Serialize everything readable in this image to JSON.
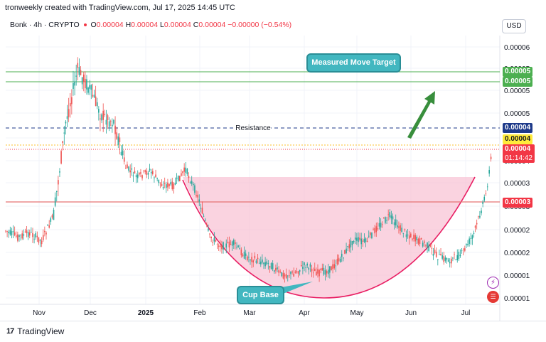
{
  "header": "tronweekly created with TradingView.com, Jul 17, 2025 14:45 UTC",
  "legend": {
    "symbol": "Bonk · 4h · CRYPTO",
    "open_label": "O",
    "open": "0.00004",
    "high_label": "H",
    "high": "0.00004",
    "low_label": "L",
    "low": "0.00004",
    "close_label": "C",
    "close": "0.00004",
    "change": "−0.00000 (−0.54%)"
  },
  "currency_button": "USD",
  "footer_brand": "TradingView",
  "footer_logo": "17",
  "annotations": {
    "measured_move": "Measured Move Target",
    "cup_base": "Cup Base",
    "resistance": "Resistance"
  },
  "price_tags": {
    "target_upper": "0.00005",
    "target_lower": "0.00005",
    "resistance": "0.00004",
    "yellow_line": "0.00004",
    "current_price": "0.00004",
    "countdown": "01:14:42",
    "support": "0.00003"
  },
  "colors": {
    "up": "#26a69a",
    "down": "#ef5350",
    "cup_fill": "#f8bbd0",
    "cup_stroke": "#e91e63",
    "target_green": "#4caf50",
    "resistance_blue": "#1e3a8a",
    "support_red": "#e57373",
    "callout": "#42b7c0",
    "arrow": "#388e3c"
  },
  "icons": [
    "lightning-icon",
    "flag-icon"
  ],
  "chart_data": {
    "type": "candlestick",
    "title": "Bonk · 4h · CRYPTO",
    "xlabel": "",
    "ylabel": "",
    "x_ticks": [
      "Nov",
      "Dec",
      "2025",
      "Feb",
      "Mar",
      "Apr",
      "May",
      "Jun",
      "Jul"
    ],
    "y_ticks": [
      "0.00006",
      "0.00005",
      "0.00005",
      "0.00005",
      "0.00004",
      "0.00004",
      "0.00003",
      "0.00003",
      "0.00002",
      "0.00002",
      "0.00001",
      "0.00001"
    ],
    "ylim": [
      8.5e-06,
      6.08e-05
    ],
    "key_levels": {
      "measured_move_target_upper": 5.32e-05,
      "measured_move_target_lower": 5.13e-05,
      "resistance": 4.18e-05,
      "support": 2.9e-05,
      "current_price": 3.89e-05
    },
    "series": [
      {
        "name": "Bonk",
        "points": [
          [
            "2024-10-06",
            2.28e-05
          ],
          [
            "2024-10-13",
            2.16e-05
          ],
          [
            "2024-10-20",
            2.24e-05
          ],
          [
            "2024-10-27",
            2.08e-05
          ],
          [
            "2024-11-03",
            2.58e-05
          ],
          [
            "2024-11-10",
            4.38e-05
          ],
          [
            "2024-11-17",
            5.41e-05
          ],
          [
            "2024-11-24",
            5.04e-05
          ],
          [
            "2024-12-01",
            4.52e-05
          ],
          [
            "2024-12-08",
            4.4e-05
          ],
          [
            "2024-12-15",
            3.52e-05
          ],
          [
            "2024-12-22",
            3.32e-05
          ],
          [
            "2024-12-29",
            3.45e-05
          ],
          [
            "2025-01-05",
            3.18e-05
          ],
          [
            "2025-01-12",
            3.16e-05
          ],
          [
            "2025-01-19",
            3.48e-05
          ],
          [
            "2025-01-26",
            2.96e-05
          ],
          [
            "2025-02-02",
            2.16e-05
          ],
          [
            "2025-02-09",
            1.98e-05
          ],
          [
            "2025-02-16",
            2.03e-05
          ],
          [
            "2025-02-23",
            1.78e-05
          ],
          [
            "2025-03-02",
            1.7e-05
          ],
          [
            "2025-03-09",
            1.63e-05
          ],
          [
            "2025-03-16",
            1.42e-05
          ],
          [
            "2025-03-23",
            1.45e-05
          ],
          [
            "2025-03-30",
            1.62e-05
          ],
          [
            "2025-04-06",
            1.46e-05
          ],
          [
            "2025-04-13",
            1.52e-05
          ],
          [
            "2025-04-20",
            1.76e-05
          ],
          [
            "2025-04-27",
            2.12e-05
          ],
          [
            "2025-05-04",
            2.06e-05
          ],
          [
            "2025-05-11",
            2.36e-05
          ],
          [
            "2025-05-18",
            2.57e-05
          ],
          [
            "2025-05-25",
            2.29e-05
          ],
          [
            "2025-06-01",
            2.14e-05
          ],
          [
            "2025-06-08",
            2.02e-05
          ],
          [
            "2025-06-15",
            1.78e-05
          ],
          [
            "2025-06-22",
            1.7e-05
          ],
          [
            "2025-06-29",
            1.83e-05
          ],
          [
            "2025-07-06",
            2.22e-05
          ],
          [
            "2025-07-13",
            2.98e-05
          ],
          [
            "2025-07-17",
            3.89e-05
          ]
        ]
      }
    ],
    "grid": true,
    "legend_position": "top-left"
  }
}
